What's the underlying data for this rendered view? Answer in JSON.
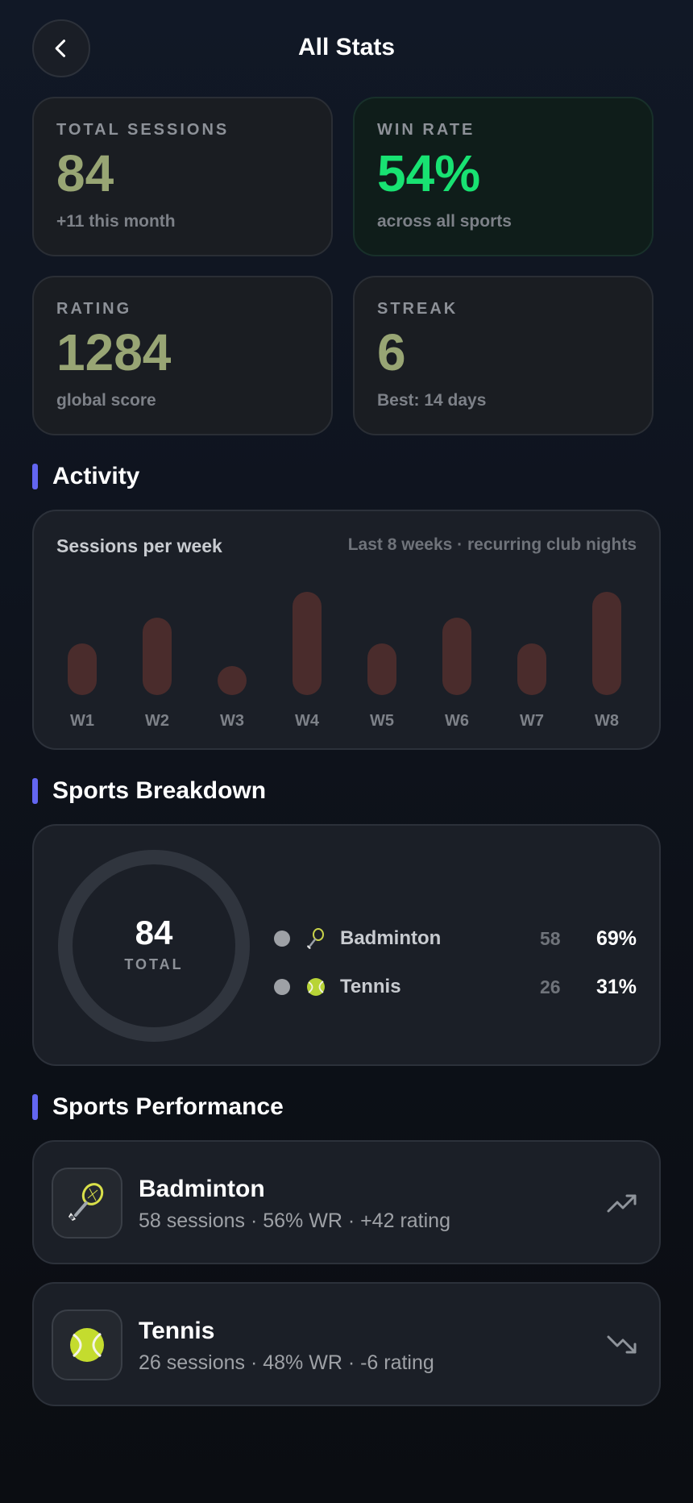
{
  "header": {
    "title": "All Stats"
  },
  "stats": [
    {
      "label": "TOTAL SESSIONS",
      "value": "84",
      "sub": "+11 this month"
    },
    {
      "label": "WIN RATE",
      "value": "54%",
      "sub": "across all sports"
    },
    {
      "label": "RATING",
      "value": "1284",
      "sub": "global score"
    },
    {
      "label": "STREAK",
      "value": "6",
      "sub": "Best: 14 days"
    }
  ],
  "sections": {
    "activity": "Activity",
    "breakdown": "Sports Breakdown",
    "performance": "Sports Performance"
  },
  "activity": {
    "title": "Sessions per week",
    "subtitle": "Last 8 weeks · recurring club nights",
    "weeks": [
      "W1",
      "W2",
      "W3",
      "W4",
      "W5",
      "W6",
      "W7",
      "W8"
    ],
    "values": [
      2,
      3,
      1,
      4,
      2,
      3,
      2,
      4
    ],
    "bar_color": "#4a2c2c"
  },
  "breakdown": {
    "total": "84",
    "total_label": "TOTAL",
    "items": [
      {
        "icon": "badminton-icon",
        "name": "Badminton",
        "count": "58",
        "pct": "69%"
      },
      {
        "icon": "tennis-ball-icon",
        "name": "Tennis",
        "count": "26",
        "pct": "31%"
      }
    ]
  },
  "performance": [
    {
      "icon": "badminton-icon",
      "name": "Badminton",
      "detail": "58 sessions · 56% WR · +42 rating",
      "trend": "trending-up-icon"
    },
    {
      "icon": "tennis-ball-icon",
      "name": "Tennis",
      "detail": "26 sessions · 48% WR · -6 rating",
      "trend": "trending-down-icon"
    }
  ],
  "colors": {
    "accent": "#6366f1",
    "win_green": "#18e272",
    "value_olive": "#98a574"
  }
}
